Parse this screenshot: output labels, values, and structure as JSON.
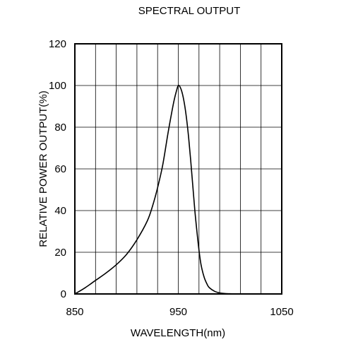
{
  "chart_data": {
    "type": "line",
    "title": "SPECTRAL OUTPUT",
    "xlabel": "WAVELENGTH(nm)",
    "ylabel": "RELATIVE POWER OUTPUT(%)",
    "xlim": [
      850,
      1050
    ],
    "ylim": [
      0,
      120
    ],
    "x_ticks": [
      850,
      950,
      1050
    ],
    "y_ticks": [
      0,
      20,
      40,
      60,
      80,
      100,
      120
    ],
    "x_grid_step": 20,
    "y_grid_step": 20,
    "grid": true,
    "series": [
      {
        "x": [
          850,
          860,
          870,
          880,
          890,
          900,
          910,
          920,
          925,
          930,
          935,
          940,
          944,
          946,
          948,
          950,
          952,
          954,
          956,
          958,
          960,
          962,
          964,
          966,
          968,
          970,
          972,
          975,
          978,
          980,
          985,
          990,
          995,
          1000,
          1005,
          1010
        ],
        "y": [
          0,
          3,
          6.5,
          10,
          14,
          19,
          26,
          35,
          42,
          51,
          62,
          77,
          88,
          93,
          97,
          100,
          99,
          96,
          91,
          84,
          75,
          64,
          52,
          40,
          30,
          21,
          14,
          8,
          4.5,
          3,
          1.3,
          0.5,
          0.2,
          0.1,
          0,
          0
        ]
      }
    ],
    "colors": {
      "line": "#000000",
      "grid": "#000000",
      "background": "#ffffff"
    }
  }
}
